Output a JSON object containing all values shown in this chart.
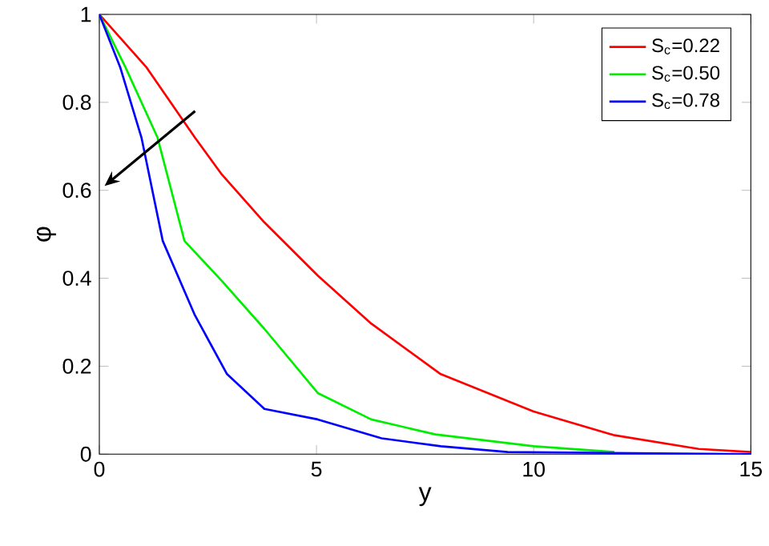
{
  "chart_data": {
    "type": "line",
    "xlabel": "y",
    "ylabel": "φ",
    "xlim": [
      0,
      15
    ],
    "ylim": [
      0,
      1
    ],
    "xticks": [
      0,
      5,
      10,
      15
    ],
    "yticks": [
      0,
      0.2,
      0.4,
      0.6,
      0.8,
      1
    ],
    "legend": "top right",
    "grid": false,
    "marker": "none",
    "line_style": "solid",
    "series": [
      {
        "name": "S$_{c}$=0.22",
        "color": "#ff0000",
        "x": [
          0,
          1.09,
          2.2,
          2.82,
          3.8,
          5.03,
          6.26,
          7.86,
          10,
          11.86,
          13.8,
          15
        ],
        "values": [
          1,
          0.879,
          0.72,
          0.636,
          0.527,
          0.406,
          0.297,
          0.182,
          0.097,
          0.043,
          0.012,
          0.005
        ]
      },
      {
        "name": "S$_{c}$=0.50",
        "color": "#00ee00",
        "x": [
          0,
          0.6,
          1.34,
          1.96,
          2.82,
          3.8,
          5.03,
          6.26,
          7.74,
          10,
          11.86
        ],
        "values": [
          1,
          0.88,
          0.72,
          0.485,
          0.394,
          0.285,
          0.139,
          0.079,
          0.045,
          0.018,
          0.005
        ]
      },
      {
        "name": "S$_{c}$=0.78",
        "color": "#0000ff",
        "x": [
          0,
          0.48,
          0.97,
          1.46,
          2.2,
          2.94,
          3.8,
          5.03,
          6.5,
          7.86,
          9.4,
          15
        ],
        "values": [
          1,
          0.88,
          0.72,
          0.485,
          0.316,
          0.182,
          0.103,
          0.079,
          0.036,
          0.018,
          0.005,
          0
        ]
      }
    ]
  }
}
